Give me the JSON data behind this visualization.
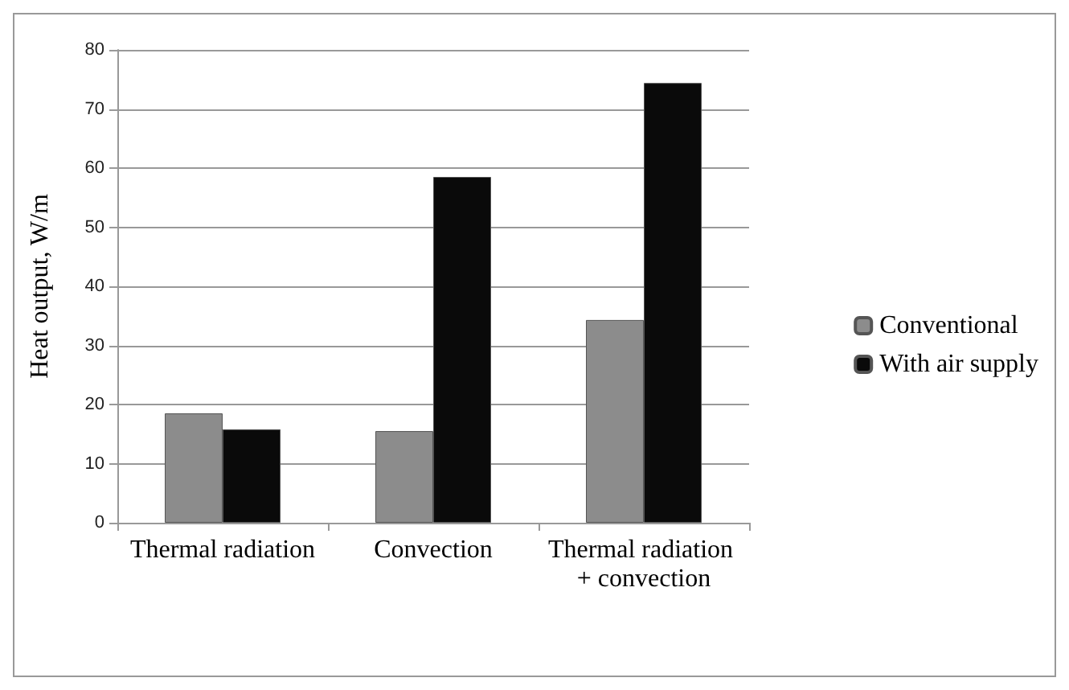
{
  "chart_data": {
    "type": "bar",
    "ylabel": "Heat output, W/m",
    "categories": [
      "Thermal radiation",
      "Convection",
      "Thermal radiation + convection"
    ],
    "series": [
      {
        "name": "Conventional",
        "color": "#8c8c8c",
        "values": [
          18.5,
          15.5,
          34.3
        ]
      },
      {
        "name": "With air supply",
        "color": "#0a0a0a",
        "values": [
          15.8,
          58.5,
          74.4
        ]
      }
    ],
    "ylim": [
      0,
      80
    ],
    "yticks": [
      0,
      10,
      20,
      30,
      40,
      50,
      60,
      70,
      80
    ],
    "grid": "y",
    "legend": "right"
  }
}
